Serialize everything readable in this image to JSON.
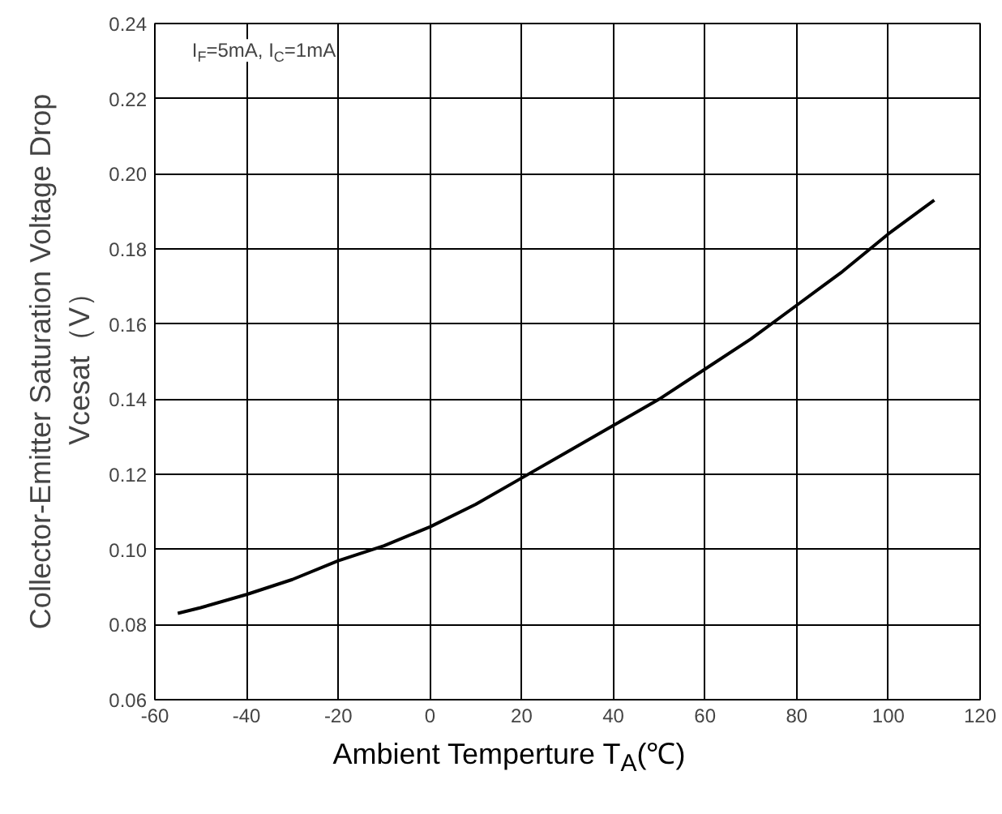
{
  "chart_data": {
    "type": "line",
    "xlabel": "Ambient Temperture T$_{A}$(℃)",
    "ylabel": "Collector-Emitter Saturation Voltage Drop\nVcesat（V）",
    "annotations": [
      "I$_{F}$=5mA, I$_{C}$=1mA"
    ],
    "x": [
      -55,
      -50,
      -40,
      -30,
      -20,
      -10,
      0,
      10,
      20,
      30,
      40,
      50,
      60,
      70,
      80,
      90,
      100,
      110
    ],
    "series": [
      {
        "color": "#000000",
        "values": [
          0.083,
          0.0845,
          0.088,
          0.092,
          0.097,
          0.101,
          0.106,
          0.112,
          0.119,
          0.126,
          0.133,
          0.14,
          0.148,
          0.156,
          0.165,
          0.174,
          0.184,
          0.193
        ]
      }
    ],
    "xlim": [
      -60,
      120
    ],
    "ylim": [
      0.06,
      0.24
    ],
    "xticks": [
      -60,
      -40,
      -20,
      0,
      20,
      40,
      60,
      80,
      100,
      120
    ],
    "yticks": [
      {
        "value": 0.06,
        "label": "0.06"
      },
      {
        "value": 0.08,
        "label": "0.08"
      },
      {
        "value": 0.1,
        "label": "0.10"
      },
      {
        "value": 0.12,
        "label": "0.12"
      },
      {
        "value": 0.14,
        "label": "0.14"
      },
      {
        "value": 0.16,
        "label": "0.16"
      },
      {
        "value": 0.18,
        "label": "0.18"
      },
      {
        "value": 0.2,
        "label": "0.20"
      },
      {
        "value": 0.22,
        "label": "0.22"
      },
      {
        "value": 0.24,
        "label": "0.24"
      }
    ],
    "grid": true,
    "marker": "none",
    "line_style": "solid"
  }
}
